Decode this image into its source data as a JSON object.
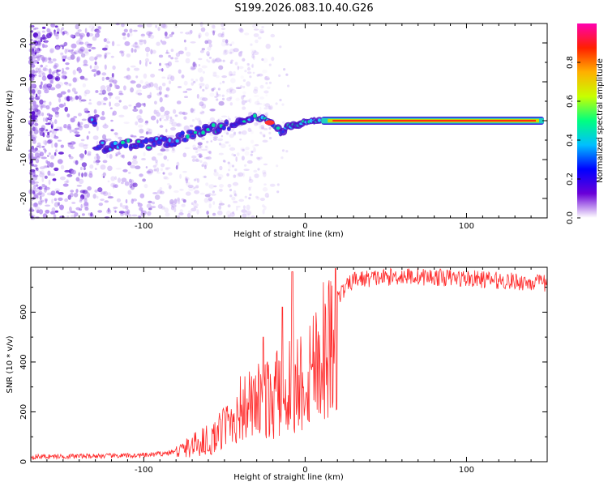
{
  "title": "S199.2026.083.10.40.G26",
  "chart_data": [
    {
      "type": "heatmap",
      "name": "spectrogram",
      "xlabel": "Height of straight line (km)",
      "ylabel": "Frequency (Hz)",
      "xlim": [
        -170,
        150
      ],
      "ylim": [
        -25,
        25
      ],
      "xticks": [
        -100,
        0,
        100
      ],
      "yticks": [
        -20,
        -10,
        0,
        10,
        20
      ],
      "grid": false,
      "track": [
        {
          "x": -130,
          "y": -6.5
        },
        {
          "x": -120,
          "y": -6.8
        },
        {
          "x": -110,
          "y": -6.2
        },
        {
          "x": -100,
          "y": -6.0
        },
        {
          "x": -90,
          "y": -5.5
        },
        {
          "x": -80,
          "y": -5.0
        },
        {
          "x": -70,
          "y": -3.0
        },
        {
          "x": -60,
          "y": -2.0
        },
        {
          "x": -50,
          "y": -1.5
        },
        {
          "x": -40,
          "y": -0.5
        },
        {
          "x": -32,
          "y": 1.0
        },
        {
          "x": -25,
          "y": 0.5
        },
        {
          "x": -20,
          "y": -0.8
        },
        {
          "x": -15,
          "y": -3.0
        },
        {
          "x": -10,
          "y": -1.5
        },
        {
          "x": 0,
          "y": -0.5
        },
        {
          "x": 10,
          "y": -0.2
        },
        {
          "x": 20,
          "y": 0.0
        },
        {
          "x": 60,
          "y": 0.0
        },
        {
          "x": 100,
          "y": 0.0
        },
        {
          "x": 148,
          "y": 0.0
        }
      ],
      "colorbar": {
        "label": "Normalized spectral amplitude",
        "range": [
          0,
          1
        ],
        "ticks": [
          "0.0",
          "0.2",
          "0.4",
          "0.6",
          "0.8"
        ],
        "tick_values": [
          0.0,
          0.2,
          0.4,
          0.6,
          0.8
        ],
        "colors": [
          "#ffffff",
          "#6a00d8",
          "#0000ff",
          "#00bfff",
          "#00ff80",
          "#c8ff00",
          "#ffb000",
          "#ff2000",
          "#ff00b0"
        ]
      }
    },
    {
      "type": "line",
      "name": "snr",
      "xlabel": "Height of straight line (km)",
      "ylabel": "SNR (10 * v/v)",
      "xlim": [
        -170,
        150
      ],
      "ylim": [
        0,
        780
      ],
      "xticks": [
        -100,
        0,
        100
      ],
      "yticks": [
        0,
        200,
        400,
        600
      ],
      "line_color": "#ff2a2a",
      "envelope": [
        {
          "x": -170,
          "y": 20
        },
        {
          "x": -100,
          "y": 25
        },
        {
          "x": -85,
          "y": 35
        },
        {
          "x": -75,
          "y": 50
        },
        {
          "x": -60,
          "y": 90
        },
        {
          "x": -50,
          "y": 180
        },
        {
          "x": -40,
          "y": 270
        },
        {
          "x": -30,
          "y": 300
        },
        {
          "x": -20,
          "y": 330
        },
        {
          "x": -10,
          "y": 400
        },
        {
          "x": 0,
          "y": 430
        },
        {
          "x": 10,
          "y": 580
        },
        {
          "x": 20,
          "y": 660
        },
        {
          "x": 30,
          "y": 730
        },
        {
          "x": 60,
          "y": 745
        },
        {
          "x": 100,
          "y": 735
        },
        {
          "x": 150,
          "y": 715
        }
      ],
      "spikes": [
        {
          "x": -8,
          "y": 762
        },
        {
          "x": -26,
          "y": 500
        },
        {
          "x": -14,
          "y": 620
        }
      ]
    }
  ]
}
